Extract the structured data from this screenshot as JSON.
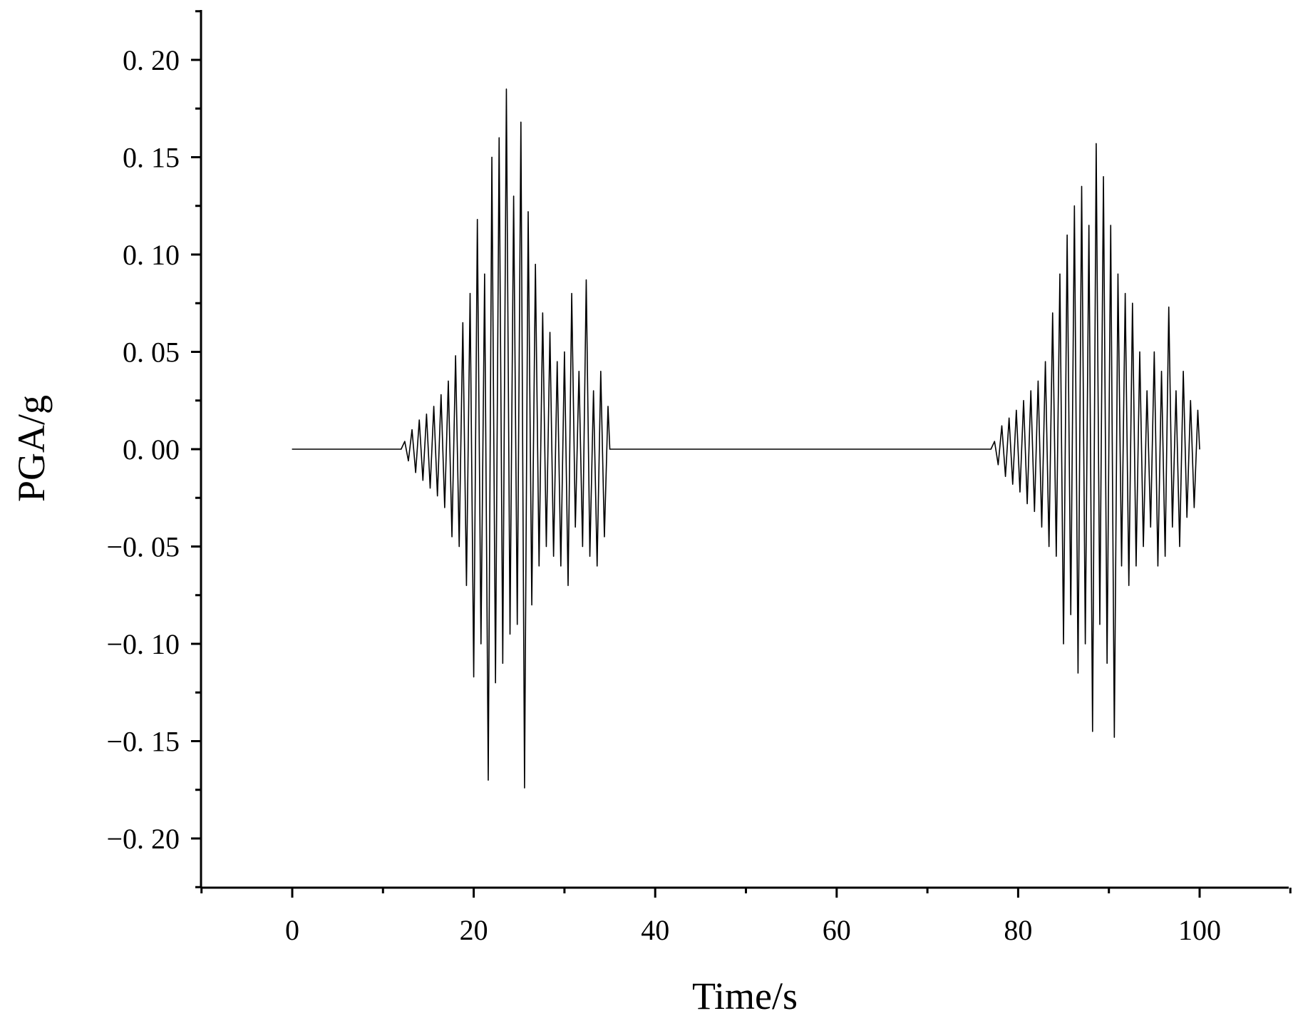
{
  "chart_data": {
    "type": "line",
    "title": "",
    "xlabel": "Time/s",
    "ylabel": "PGA/g",
    "xlim": [
      -10,
      110
    ],
    "ylim": [
      -0.225,
      0.225
    ],
    "x_ticks": [
      0,
      20,
      40,
      60,
      80,
      100
    ],
    "x_tick_labels": [
      "0",
      "20",
      "40",
      "60",
      "80",
      "100"
    ],
    "y_ticks": [
      0.2,
      0.15,
      0.1,
      0.05,
      0.0,
      -0.05,
      -0.1,
      -0.15,
      -0.2
    ],
    "y_tick_labels": [
      "0. 20",
      "0. 15",
      "0. 10",
      "0. 05",
      "0. 00",
      "−0. 05",
      "−0. 10",
      "−0. 15",
      "−0. 20"
    ],
    "grid": false,
    "legend": "none",
    "series": [
      {
        "color": "#000000",
        "x": [
          0,
          12.0,
          12.4,
          12.8,
          13.2,
          13.6,
          14.0,
          14.4,
          14.8,
          15.2,
          15.6,
          16.0,
          16.4,
          16.8,
          17.2,
          17.6,
          18.0,
          18.4,
          18.8,
          19.2,
          19.6,
          20.0,
          20.4,
          20.8,
          21.2,
          21.6,
          22.0,
          22.4,
          22.8,
          23.2,
          23.6,
          24.0,
          24.4,
          24.8,
          25.2,
          25.6,
          26.0,
          26.4,
          26.8,
          27.2,
          27.6,
          28.0,
          28.4,
          28.8,
          29.2,
          29.6,
          30.0,
          30.4,
          30.8,
          31.2,
          31.6,
          32.0,
          32.4,
          32.8,
          33.2,
          33.6,
          34.0,
          34.4,
          34.8,
          35.0,
          77.0,
          77.4,
          77.8,
          78.2,
          78.6,
          79.0,
          79.4,
          79.8,
          80.2,
          80.6,
          81.0,
          81.4,
          81.8,
          82.2,
          82.6,
          83.0,
          83.4,
          83.8,
          84.2,
          84.6,
          85.0,
          85.4,
          85.8,
          86.2,
          86.6,
          87.0,
          87.4,
          87.8,
          88.2,
          88.6,
          89.0,
          89.4,
          89.8,
          90.2,
          90.6,
          91.0,
          91.4,
          91.8,
          92.2,
          92.6,
          93.0,
          93.4,
          93.8,
          94.2,
          94.6,
          95.0,
          95.4,
          95.8,
          96.2,
          96.6,
          97.0,
          97.4,
          97.8,
          98.2,
          98.6,
          99.0,
          99.4,
          99.8,
          100.0
        ],
        "y": [
          0,
          0,
          0.004,
          -0.006,
          0.01,
          -0.012,
          0.015,
          -0.016,
          0.018,
          -0.02,
          0.022,
          -0.024,
          0.028,
          -0.03,
          0.035,
          -0.045,
          0.048,
          -0.05,
          0.065,
          -0.07,
          0.08,
          -0.117,
          0.118,
          -0.1,
          0.09,
          -0.17,
          0.15,
          -0.12,
          0.16,
          -0.11,
          0.185,
          -0.095,
          0.13,
          -0.09,
          0.168,
          -0.174,
          0.122,
          -0.08,
          0.095,
          -0.06,
          0.07,
          -0.05,
          0.06,
          -0.055,
          0.045,
          -0.06,
          0.05,
          -0.07,
          0.08,
          -0.04,
          0.04,
          -0.05,
          0.087,
          -0.055,
          0.03,
          -0.06,
          0.04,
          -0.045,
          0.022,
          0,
          0,
          0.004,
          -0.008,
          0.012,
          -0.014,
          0.016,
          -0.018,
          0.02,
          -0.022,
          0.025,
          -0.028,
          0.03,
          -0.032,
          0.035,
          -0.04,
          0.045,
          -0.05,
          0.07,
          -0.055,
          0.09,
          -0.1,
          0.11,
          -0.085,
          0.125,
          -0.115,
          0.135,
          -0.1,
          0.115,
          -0.145,
          0.157,
          -0.09,
          0.14,
          -0.11,
          0.115,
          -0.148,
          0.09,
          -0.06,
          0.08,
          -0.07,
          0.075,
          -0.06,
          0.05,
          -0.05,
          0.03,
          -0.04,
          0.05,
          -0.06,
          0.04,
          -0.055,
          0.073,
          -0.04,
          0.03,
          -0.05,
          0.04,
          -0.035,
          0.025,
          -0.03,
          0.02,
          0
        ]
      }
    ]
  }
}
